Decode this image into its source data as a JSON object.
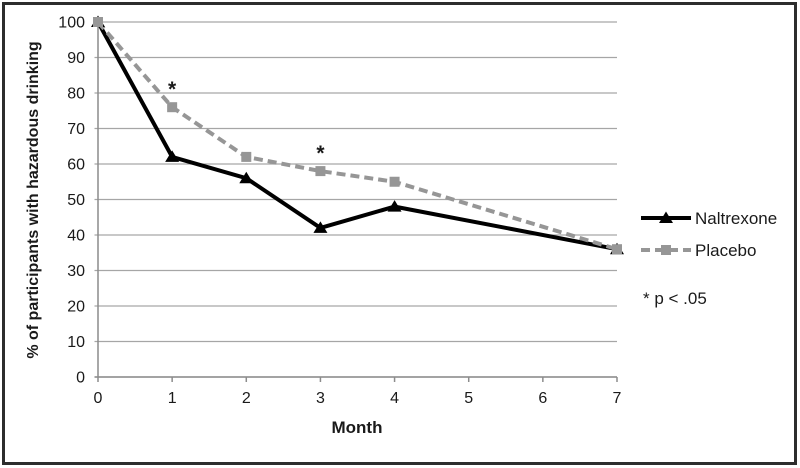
{
  "chart_data": {
    "type": "line",
    "x": [
      0,
      1,
      2,
      3,
      4,
      7
    ],
    "x_ticks": [
      0,
      1,
      2,
      3,
      4,
      5,
      6,
      7
    ],
    "xlim": [
      0,
      7
    ],
    "ylim": [
      0,
      100
    ],
    "y_tick_step": 10,
    "xlabel": "Month",
    "ylabel": "% of participants with hazardous drinking",
    "grid": true,
    "legend_position": "right",
    "series": [
      {
        "name": "Naltrexone",
        "values": [
          100,
          62,
          56,
          42,
          48,
          36
        ],
        "color": "#000000",
        "dash": "",
        "marker": "triangle"
      },
      {
        "name": "Placebo",
        "values": [
          100,
          76,
          62,
          58,
          55,
          36
        ],
        "color": "#969696",
        "dash": "9 5",
        "marker": "square"
      }
    ],
    "annotations": [
      {
        "text": "*",
        "x": 1,
        "y": 76
      },
      {
        "text": "*",
        "x": 3,
        "y": 58
      }
    ],
    "legend_note": "* p < .05"
  },
  "colors": {
    "frame": "#2d2d2d",
    "gridline": "#a6a6a6",
    "axis": "#8c8c8c",
    "text": "#1a1a1a",
    "background": "#ffffff"
  }
}
